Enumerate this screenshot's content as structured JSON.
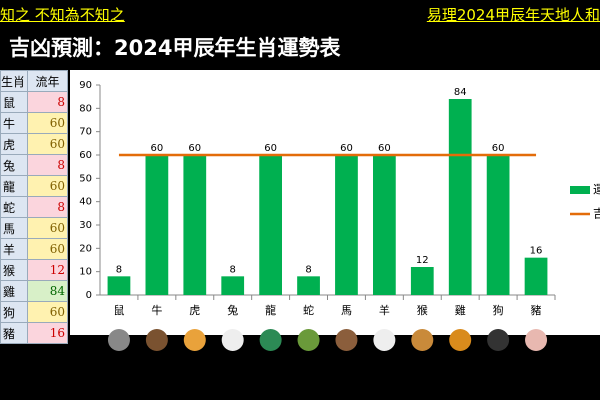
{
  "header": {
    "left": "知之 不知為不知之",
    "right": "易理2024甲辰年天地人和",
    "title": "、吉凶預測：2024甲辰年生肖運勢表"
  },
  "table": {
    "columns": [
      "生肖",
      "流年"
    ]
  },
  "chart_data": {
    "type": "bar",
    "categories": [
      "鼠",
      "牛",
      "虎",
      "兔",
      "龍",
      "蛇",
      "馬",
      "羊",
      "猴",
      "雞",
      "狗",
      "豬"
    ],
    "series": [
      {
        "name": "運",
        "color": "#00b050",
        "type": "bar",
        "values": [
          8,
          60,
          60,
          8,
          60,
          8,
          60,
          60,
          12,
          84,
          60,
          16
        ]
      },
      {
        "name": "吉",
        "color": "#e36c09",
        "type": "line",
        "values": [
          60,
          60,
          60,
          60,
          60,
          60,
          60,
          60,
          60,
          60,
          60,
          60
        ]
      }
    ],
    "ylim": [
      0,
      90
    ],
    "yticks": [
      0,
      10,
      20,
      30,
      40,
      50,
      60,
      70,
      80,
      90
    ],
    "grid": false
  }
}
